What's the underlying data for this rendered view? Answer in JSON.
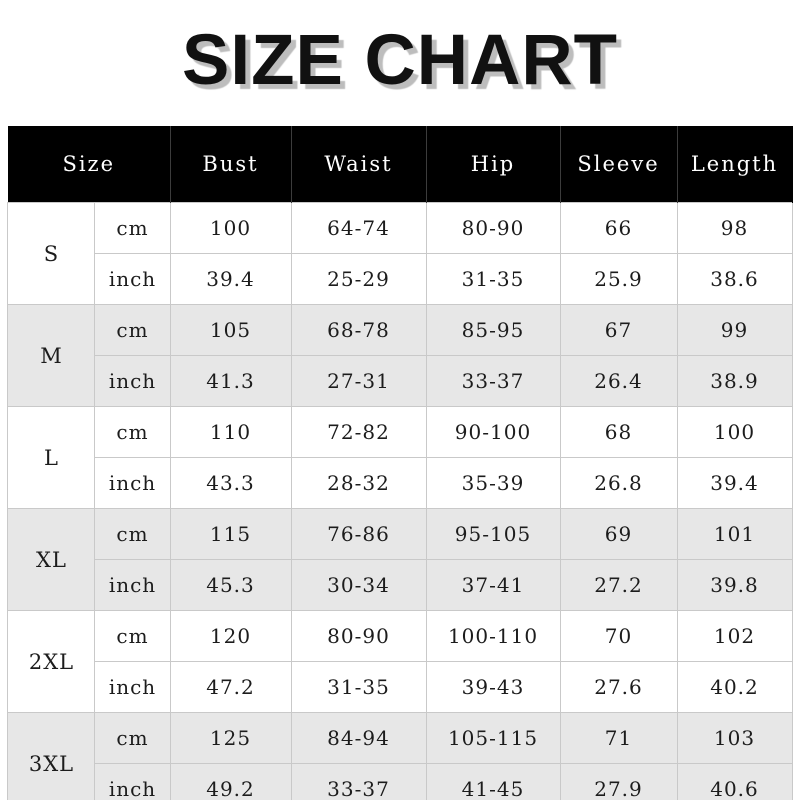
{
  "title": "SIZE CHART",
  "chart_data": {
    "type": "table",
    "title": "SIZE CHART",
    "columns": [
      "Size",
      "Bust",
      "Waist",
      "Hip",
      "Sleeve",
      "Length"
    ],
    "units": [
      "cm",
      "inch"
    ],
    "rows": [
      {
        "size": "S",
        "cm": [
          "100",
          "64-74",
          "80-90",
          "66",
          "98"
        ],
        "inch": [
          "39.4",
          "25-29",
          "31-35",
          "25.9",
          "38.6"
        ]
      },
      {
        "size": "M",
        "cm": [
          "105",
          "68-78",
          "85-95",
          "67",
          "99"
        ],
        "inch": [
          "41.3",
          "27-31",
          "33-37",
          "26.4",
          "38.9"
        ]
      },
      {
        "size": "L",
        "cm": [
          "110",
          "72-82",
          "90-100",
          "68",
          "100"
        ],
        "inch": [
          "43.3",
          "28-32",
          "35-39",
          "26.8",
          "39.4"
        ]
      },
      {
        "size": "XL",
        "cm": [
          "115",
          "76-86",
          "95-105",
          "69",
          "101"
        ],
        "inch": [
          "45.3",
          "30-34",
          "37-41",
          "27.2",
          "39.8"
        ]
      },
      {
        "size": "2XL",
        "cm": [
          "120",
          "80-90",
          "100-110",
          "70",
          "102"
        ],
        "inch": [
          "47.2",
          "31-35",
          "39-43",
          "27.6",
          "40.2"
        ]
      },
      {
        "size": "3XL",
        "cm": [
          "125",
          "84-94",
          "105-115",
          "71",
          "103"
        ],
        "inch": [
          "49.2",
          "33-37",
          "41-45",
          "27.9",
          "40.6"
        ]
      }
    ]
  },
  "colors": {
    "header_bg": "#000000",
    "header_text": "#ffffff",
    "header_divider": "#3c3c3c",
    "row_bg": "#ffffff",
    "row_alt_bg": "#e7e7e7",
    "grid_line": "#c9c9c9",
    "text": "#1c1c1c",
    "title_text": "#111111",
    "title_shadow": "#bdbdbd",
    "table_bottom_border": "#666666"
  }
}
